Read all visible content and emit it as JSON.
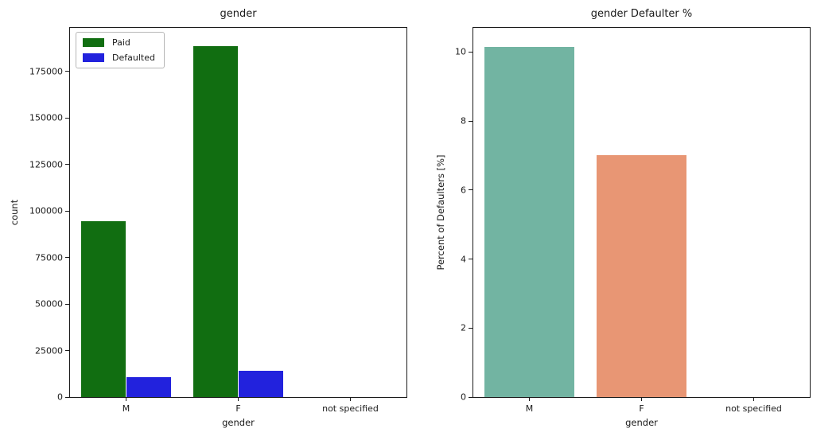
{
  "figure": {
    "background": "#ffffff",
    "text_color": "#1a1a1a"
  },
  "chart_data": [
    {
      "type": "bar",
      "title": "gender",
      "xlabel": "gender",
      "ylabel": "count",
      "categories": [
        "M",
        "F",
        "not specified"
      ],
      "series": [
        {
          "name": "Paid",
          "color": "#116e11",
          "values": [
            94500,
            188500,
            0
          ]
        },
        {
          "name": "Defaulted",
          "color": "#2222dd",
          "values": [
            10700,
            14200,
            0
          ]
        }
      ],
      "ylim": [
        0,
        198500
      ],
      "yticks": [
        0,
        25000,
        50000,
        75000,
        100000,
        125000,
        150000,
        175000
      ],
      "bar_group_width": 0.8,
      "grid": false,
      "legend": {
        "visible": true,
        "position": "upper left",
        "entries": [
          "Paid",
          "Defaulted"
        ]
      }
    },
    {
      "type": "bar",
      "title": "gender Defaulter %",
      "xlabel": "gender",
      "ylabel": "Percent of Defaulters [%]",
      "categories": [
        "M",
        "F",
        "not specified"
      ],
      "series": [
        {
          "name": "Defaulter %",
          "colors": [
            "#72b4a2",
            "#e89674",
            "#8da0cb"
          ],
          "values": [
            10.15,
            7.0,
            0
          ]
        }
      ],
      "ylim": [
        0,
        10.7
      ],
      "yticks": [
        0,
        2,
        4,
        6,
        8,
        10
      ],
      "bar_group_width": 0.8,
      "grid": false,
      "legend": {
        "visible": false
      }
    }
  ]
}
